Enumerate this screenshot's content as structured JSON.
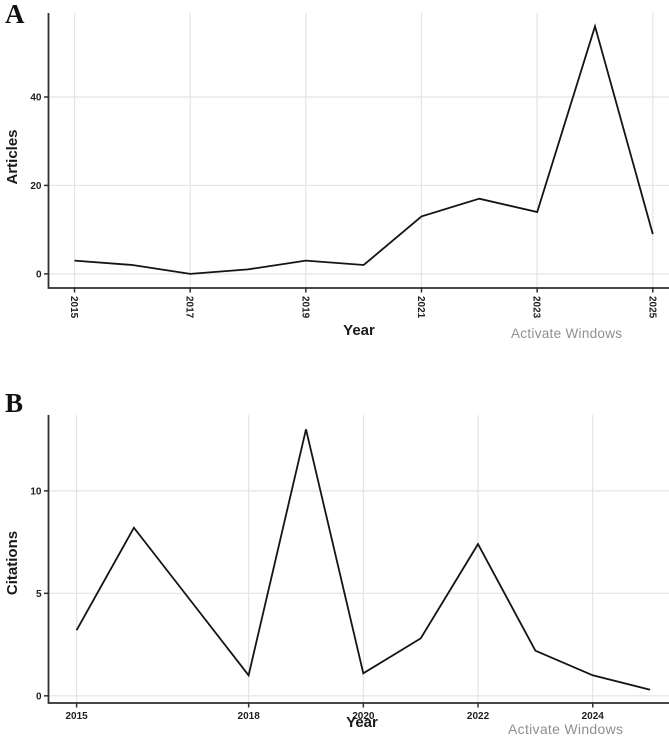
{
  "figure": {
    "background": "#ffffff"
  },
  "watermark": {
    "text": "Activate Windows",
    "color": "#8f8f8f"
  },
  "panels": [
    {
      "label": "A"
    },
    {
      "label": "B"
    }
  ],
  "styles": {
    "grid_color": "#e4e4e4",
    "axis_color": "#2f2f2f",
    "tick_label_color": "#1f1f1f"
  },
  "chart_data": [
    {
      "type": "line",
      "panel": "A",
      "title": "",
      "xlabel": "Year",
      "ylabel": "Articles",
      "x": [
        2015,
        2016,
        2017,
        2018,
        2019,
        2020,
        2021,
        2022,
        2023,
        2024,
        2025
      ],
      "values": [
        3,
        2,
        0,
        1,
        3,
        2,
        13,
        17,
        14,
        56,
        9
      ],
      "xticks": [
        2015,
        2017,
        2019,
        2021,
        2023,
        2025
      ],
      "yticks": [
        0,
        20,
        40
      ],
      "xlim": [
        2014.55,
        2025.28
      ],
      "ylim": [
        -3.2,
        59.0
      ],
      "grid": true,
      "legend": false,
      "line_color": "#141414",
      "x_tick_rotation": 90
    },
    {
      "type": "line",
      "panel": "B",
      "title": "",
      "xlabel": "Year",
      "ylabel": "Citations",
      "x": [
        2015,
        2016,
        2017,
        2018,
        2019,
        2020,
        2021,
        2022,
        2023,
        2024,
        2025
      ],
      "values": [
        3.2,
        8.2,
        4.6,
        1.0,
        13.0,
        1.1,
        2.8,
        7.4,
        2.2,
        1.0,
        0.3
      ],
      "xticks": [
        2015,
        2018,
        2020,
        2022,
        2024
      ],
      "yticks": [
        0,
        5,
        10
      ],
      "xlim": [
        2014.51,
        2025.33
      ],
      "ylim": [
        -0.35,
        13.7
      ],
      "grid": true,
      "legend": false,
      "line_color": "#141414",
      "x_tick_rotation": 0
    }
  ]
}
